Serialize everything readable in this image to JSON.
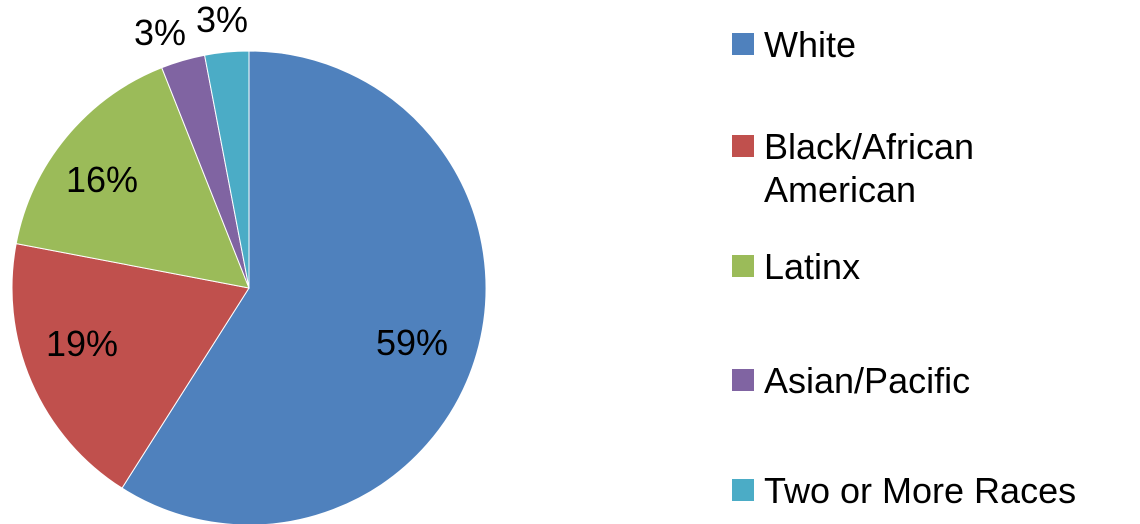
{
  "chart_data": {
    "type": "pie",
    "title": "",
    "legend_position": "right",
    "slices": [
      {
        "name": "White",
        "value": 59,
        "label": "59%",
        "color": "#4F81BD"
      },
      {
        "name": "Black/African American",
        "label": "19%",
        "value": 19,
        "color": "#C0504D"
      },
      {
        "name": "Latinx",
        "label": "16%",
        "value": 16,
        "color": "#9BBB59"
      },
      {
        "name": "Asian/Pacific",
        "label": "3%",
        "value": 3,
        "color": "#8064A2"
      },
      {
        "name": "Two or More Races",
        "label": "3%",
        "value": 3,
        "color": "#4BACC6"
      }
    ],
    "legend": [
      {
        "lines": [
          "White"
        ],
        "color": "#4F81BD"
      },
      {
        "lines": [
          "Black/African",
          "American"
        ],
        "color": "#C0504D"
      },
      {
        "lines": [
          "Latinx"
        ],
        "color": "#9BBB59"
      },
      {
        "lines": [
          "Asian/Pacific"
        ],
        "color": "#8064A2"
      },
      {
        "lines": [
          "Two or More Races"
        ],
        "color": "#4BACC6"
      }
    ]
  }
}
